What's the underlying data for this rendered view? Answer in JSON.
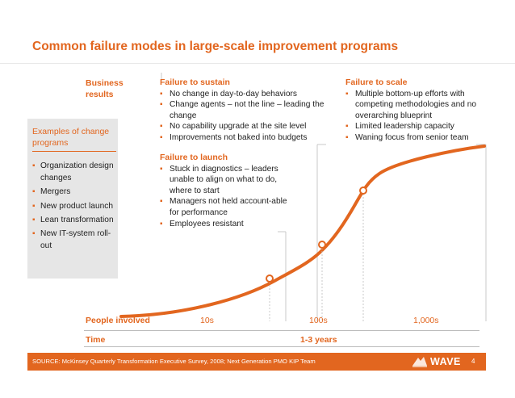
{
  "title": "Common failure modes in large-scale improvement programs",
  "business_results": [
    "Business",
    "results"
  ],
  "examples": {
    "title": "Examples of change programs",
    "items": [
      "Organization design changes",
      "Mergers",
      "New product launch",
      "Lean transformation",
      "New IT-system roll-out"
    ]
  },
  "failure_modes": [
    {
      "title": "Failure to sustain",
      "items": [
        "No change in day-to-day behaviors",
        "Change agents – not the line – leading the change",
        "No capability upgrade at the site level",
        "Improvements not baked into budgets"
      ]
    },
    {
      "title": "Failure to launch",
      "items": [
        "Stuck in diagnostics – leaders unable to align on what to do, where to start",
        "Managers not held account-able for performance",
        "Employees resistant"
      ]
    },
    {
      "title": "Failure to scale",
      "items": [
        "Multiple bottom-up efforts with competing methodologies and no overarching blueprint",
        "Limited leadership capacity",
        "Waning focus from senior team"
      ]
    }
  ],
  "people_involved": {
    "label": "People involved",
    "ticks": [
      "10s",
      "100s",
      "1,000s"
    ]
  },
  "time": {
    "label": "Time",
    "value": "1-3 years"
  },
  "footer": {
    "source": "SOURCE: McKinsey Quarterly Transformation Executive Survey, 2008; Next Generation PMO KIP Team",
    "brand": "WAVE",
    "page": "4"
  },
  "colors": {
    "accent": "#e2661f",
    "box": "#e6e6e6",
    "connector": "#bbbbbb"
  }
}
